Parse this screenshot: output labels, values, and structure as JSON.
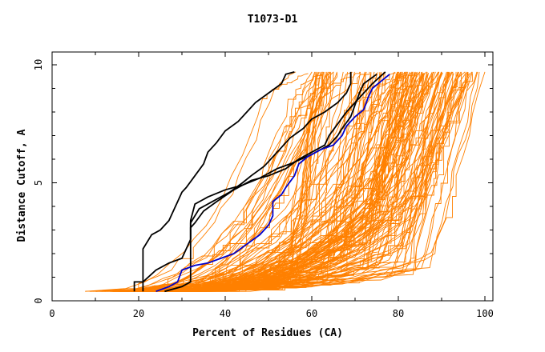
{
  "chart_data": {
    "type": "line",
    "title": "T1073-D1",
    "xlabel": "Percent of Residues (CA)",
    "ylabel": "Distance Cutoff, A",
    "xlim": [
      0,
      100
    ],
    "ylim": [
      0,
      10
    ],
    "x_ticks": [
      0,
      20,
      40,
      60,
      80,
      100
    ],
    "y_ticks": [
      0,
      5,
      10
    ],
    "grid": false,
    "colors": {
      "background": "#ffffff",
      "axis": "#000000",
      "models": "#ff8000",
      "highlight_black": "#000000",
      "highlight_blue": "#0000cc"
    },
    "highlighted_series": [
      {
        "color": "#000000",
        "points": [
          [
            19,
            0.4
          ],
          [
            19,
            0.8
          ],
          [
            21,
            0.8
          ],
          [
            21,
            2.2
          ],
          [
            23,
            2.8
          ],
          [
            25,
            3.0
          ],
          [
            27,
            3.4
          ],
          [
            28,
            3.8
          ],
          [
            29,
            4.2
          ],
          [
            30,
            4.6
          ],
          [
            31,
            4.8
          ],
          [
            33,
            5.3
          ],
          [
            35,
            5.8
          ],
          [
            36,
            6.3
          ],
          [
            38,
            6.7
          ],
          [
            40,
            7.2
          ],
          [
            43,
            7.6
          ],
          [
            45,
            8.0
          ],
          [
            47,
            8.4
          ],
          [
            50,
            8.8
          ],
          [
            53,
            9.2
          ],
          [
            54,
            9.6
          ],
          [
            56,
            9.7
          ]
        ]
      },
      {
        "color": "#000000",
        "points": [
          [
            21,
            0.4
          ],
          [
            21,
            0.8
          ],
          [
            24,
            1.3
          ],
          [
            27,
            1.6
          ],
          [
            30,
            1.8
          ],
          [
            32,
            2.6
          ],
          [
            32,
            3.4
          ],
          [
            33,
            4.1
          ],
          [
            36,
            4.4
          ],
          [
            40,
            4.7
          ],
          [
            44,
            4.9
          ],
          [
            48,
            5.2
          ],
          [
            52,
            5.6
          ],
          [
            55,
            5.8
          ],
          [
            60,
            6.2
          ],
          [
            64,
            6.6
          ],
          [
            66,
            7.0
          ],
          [
            67,
            7.3
          ],
          [
            69,
            7.8
          ],
          [
            70,
            8.3
          ],
          [
            71,
            8.8
          ],
          [
            72,
            9.2
          ],
          [
            75,
            9.6
          ]
        ]
      },
      {
        "color": "#000000",
        "points": [
          [
            26,
            0.4
          ],
          [
            30,
            0.6
          ],
          [
            32,
            0.8
          ],
          [
            32,
            3.1
          ],
          [
            33,
            3.3
          ],
          [
            35,
            3.8
          ],
          [
            38,
            4.2
          ],
          [
            42,
            4.7
          ],
          [
            46,
            5.1
          ],
          [
            50,
            5.3
          ],
          [
            54,
            5.6
          ],
          [
            57,
            6.0
          ],
          [
            60,
            6.3
          ],
          [
            63,
            6.6
          ],
          [
            64,
            7.0
          ],
          [
            66,
            7.5
          ],
          [
            68,
            8.0
          ],
          [
            70,
            8.4
          ],
          [
            72,
            8.8
          ],
          [
            74,
            9.2
          ],
          [
            77,
            9.7
          ]
        ]
      },
      {
        "color": "#000000",
        "points": [
          [
            32,
            2.6
          ],
          [
            32,
            3.3
          ],
          [
            34,
            3.9
          ],
          [
            37,
            4.2
          ],
          [
            41,
            4.6
          ],
          [
            44,
            5.0
          ],
          [
            46,
            5.3
          ],
          [
            49,
            5.7
          ],
          [
            51,
            6.1
          ],
          [
            53,
            6.5
          ],
          [
            55,
            6.9
          ],
          [
            58,
            7.3
          ],
          [
            60,
            7.7
          ],
          [
            63,
            8.0
          ],
          [
            66,
            8.4
          ],
          [
            68,
            8.8
          ],
          [
            69,
            9.2
          ],
          [
            69,
            9.7
          ]
        ]
      },
      {
        "color": "#0000cc",
        "points": [
          [
            24,
            0.4
          ],
          [
            27,
            0.6
          ],
          [
            29,
            0.8
          ],
          [
            30,
            1.3
          ],
          [
            33,
            1.5
          ],
          [
            36,
            1.6
          ],
          [
            39,
            1.8
          ],
          [
            42,
            2.0
          ],
          [
            45,
            2.4
          ],
          [
            48,
            2.8
          ],
          [
            50,
            3.2
          ],
          [
            51,
            3.6
          ],
          [
            51,
            4.2
          ],
          [
            53,
            4.5
          ],
          [
            54,
            4.8
          ],
          [
            56,
            5.3
          ],
          [
            57,
            5.8
          ],
          [
            59,
            6.1
          ],
          [
            62,
            6.4
          ],
          [
            65,
            6.6
          ],
          [
            67,
            7.0
          ],
          [
            68,
            7.4
          ],
          [
            70,
            7.8
          ],
          [
            72,
            8.1
          ],
          [
            73,
            8.6
          ],
          [
            74,
            9.0
          ],
          [
            76,
            9.3
          ],
          [
            78,
            9.6
          ]
        ]
      }
    ],
    "model_series_count": 160
  }
}
